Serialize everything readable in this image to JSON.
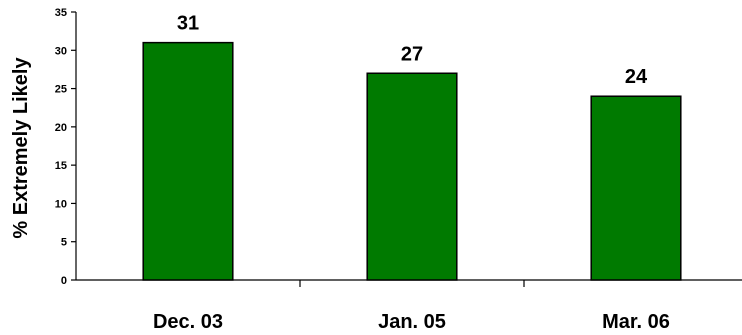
{
  "chart_data": {
    "type": "bar",
    "categories": [
      "Dec. 03",
      "Jan. 05",
      "Mar. 06"
    ],
    "values": [
      31,
      27,
      24
    ],
    "data_labels": [
      "31",
      "27",
      "24"
    ],
    "title": "",
    "xlabel": "",
    "ylabel": "% Extremely Likely",
    "ylim": [
      0,
      35
    ],
    "yticks": [
      0,
      5,
      10,
      15,
      20,
      25,
      30,
      35
    ],
    "bar_color": "#007A00",
    "bar_outline": "#000000",
    "grid": false,
    "legend": "none"
  }
}
